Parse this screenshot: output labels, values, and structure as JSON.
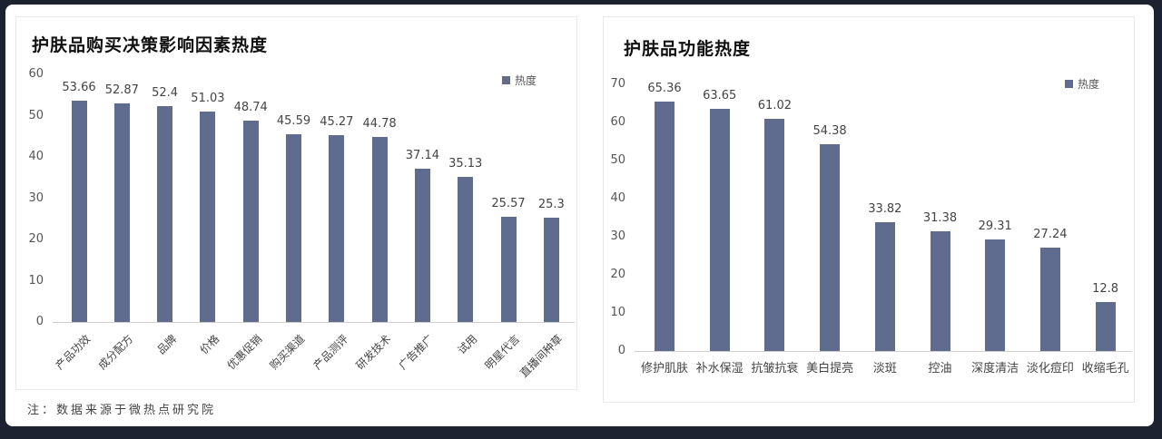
{
  "left_chart": {
    "title": "护肤品购买决策影响因素热度",
    "legend_label": "热度",
    "y_ticks": [
      "0",
      "10",
      "20",
      "30",
      "40",
      "50",
      "60"
    ]
  },
  "right_chart": {
    "title": "护肤品功能热度",
    "legend_label": "热度",
    "y_ticks": [
      "0",
      "10",
      "20",
      "30",
      "40",
      "50",
      "60",
      "70"
    ]
  },
  "footnote": "注：数据来源于微热点研究院",
  "colors": {
    "bar": "#5f6b8f",
    "frame": "#1d2231"
  },
  "chart_data": [
    {
      "type": "bar",
      "title": "护肤品购买决策影响因素热度",
      "xlabel": "",
      "ylabel": "",
      "ylim": [
        0,
        60
      ],
      "grid": false,
      "legend": {
        "position": "top-right",
        "entries": [
          "热度"
        ]
      },
      "categories": [
        "产品功效",
        "成分配方",
        "品牌",
        "价格",
        "优惠促销",
        "购买渠道",
        "产品测评",
        "研发技术",
        "广告推广",
        "试用",
        "明星代言",
        "直播间种草"
      ],
      "series": [
        {
          "name": "热度",
          "values": [
            53.66,
            52.87,
            52.4,
            51.03,
            48.74,
            45.59,
            45.27,
            44.78,
            37.14,
            35.13,
            25.57,
            25.3
          ]
        }
      ],
      "value_labels": [
        "53.66",
        "52.87",
        "52.4",
        "51.03",
        "48.74",
        "45.59",
        "45.27",
        "44.78",
        "37.14",
        "35.13",
        "25.57",
        "25.3"
      ]
    },
    {
      "type": "bar",
      "title": "护肤品功能热度",
      "xlabel": "",
      "ylabel": "",
      "ylim": [
        0,
        70
      ],
      "grid": false,
      "legend": {
        "position": "top-right",
        "entries": [
          "热度"
        ]
      },
      "categories": [
        "修护肌肤",
        "补水保湿",
        "抗皱抗衰",
        "美白提亮",
        "淡斑",
        "控油",
        "深度清洁",
        "淡化痘印",
        "收缩毛孔"
      ],
      "series": [
        {
          "name": "热度",
          "values": [
            65.36,
            63.65,
            61.02,
            54.38,
            33.82,
            31.38,
            29.31,
            27.24,
            12.8
          ]
        }
      ],
      "value_labels": [
        "65.36",
        "63.65",
        "61.02",
        "54.38",
        "33.82",
        "31.38",
        "29.31",
        "27.24",
        "12.8"
      ]
    }
  ]
}
